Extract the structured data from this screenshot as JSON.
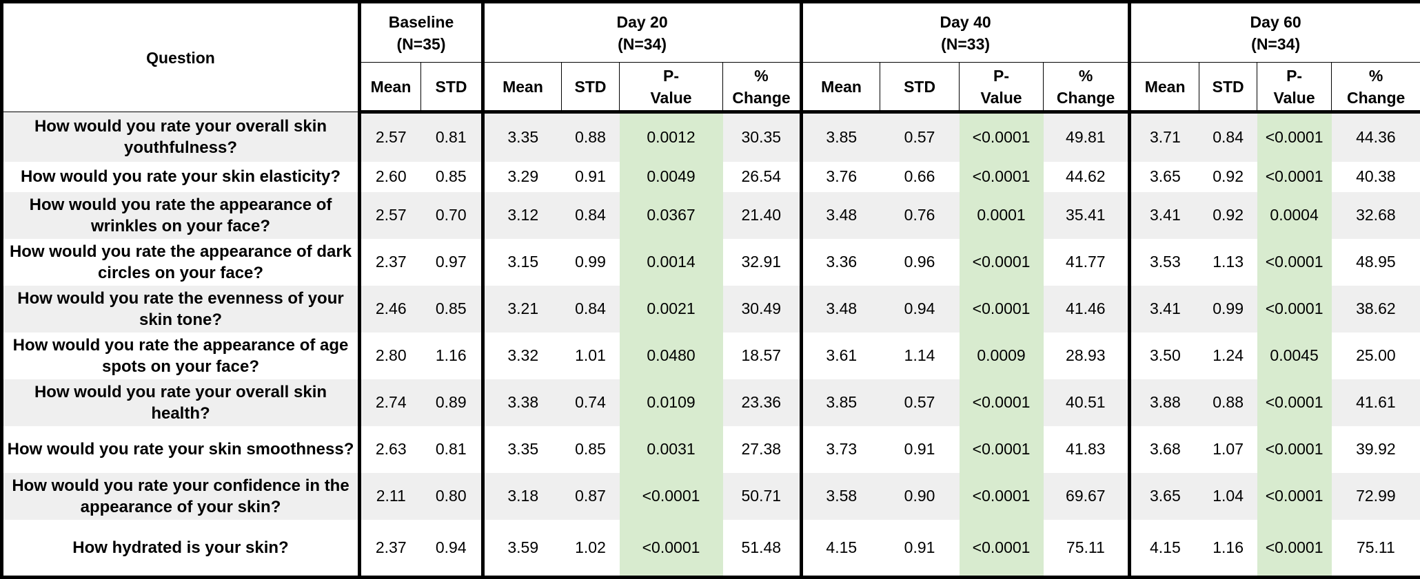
{
  "table": {
    "question_header": "Question",
    "groups": [
      {
        "label": "Baseline",
        "n": "(N=35)",
        "columns": [
          "Mean",
          "STD"
        ]
      },
      {
        "label": "Day 20",
        "n": "(N=34)",
        "columns": [
          "Mean",
          "STD",
          "P-Value",
          "% Change"
        ]
      },
      {
        "label": "Day 40",
        "n": "(N=33)",
        "columns": [
          "Mean",
          "STD",
          "P-Value",
          "% Change"
        ]
      },
      {
        "label": "Day 60",
        "n": "(N=34)",
        "columns": [
          "Mean",
          "STD",
          "P-Value",
          "% Change"
        ]
      }
    ],
    "rows": [
      {
        "question": "How would you rate your overall skin youthfulness?",
        "cells": [
          "2.57",
          "0.81",
          "3.35",
          "0.88",
          "0.0012",
          "30.35",
          "3.85",
          "0.57",
          "<0.0001",
          "49.81",
          "3.71",
          "0.84",
          "<0.0001",
          "44.36"
        ]
      },
      {
        "question": "How would you rate your skin elasticity?",
        "cells": [
          "2.60",
          "0.85",
          "3.29",
          "0.91",
          "0.0049",
          "26.54",
          "3.76",
          "0.66",
          "<0.0001",
          "44.62",
          "3.65",
          "0.92",
          "<0.0001",
          "40.38"
        ]
      },
      {
        "question": "How would you rate the appearance of wrinkles on your face?",
        "cells": [
          "2.57",
          "0.70",
          "3.12",
          "0.84",
          "0.0367",
          "21.40",
          "3.48",
          "0.76",
          "0.0001",
          "35.41",
          "3.41",
          "0.92",
          "0.0004",
          "32.68"
        ]
      },
      {
        "question": "How would you rate the appearance of dark circles on your face?",
        "cells": [
          "2.37",
          "0.97",
          "3.15",
          "0.99",
          "0.0014",
          "32.91",
          "3.36",
          "0.96",
          "<0.0001",
          "41.77",
          "3.53",
          "1.13",
          "<0.0001",
          "48.95"
        ]
      },
      {
        "question": "How would you rate the evenness of your skin tone?",
        "cells": [
          "2.46",
          "0.85",
          "3.21",
          "0.84",
          "0.0021",
          "30.49",
          "3.48",
          "0.94",
          "<0.0001",
          "41.46",
          "3.41",
          "0.99",
          "<0.0001",
          "38.62"
        ]
      },
      {
        "question": "How would you rate the appearance of age spots on your face?",
        "cells": [
          "2.80",
          "1.16",
          "3.32",
          "1.01",
          "0.0480",
          "18.57",
          "3.61",
          "1.14",
          "0.0009",
          "28.93",
          "3.50",
          "1.24",
          "0.0045",
          "25.00"
        ]
      },
      {
        "question": "How would you rate your overall skin health?",
        "cells": [
          "2.74",
          "0.89",
          "3.38",
          "0.74",
          "0.0109",
          "23.36",
          "3.85",
          "0.57",
          "<0.0001",
          "40.51",
          "3.88",
          "0.88",
          "<0.0001",
          "41.61"
        ]
      },
      {
        "question": "How would you rate your skin smoothness?",
        "cells": [
          "2.63",
          "0.81",
          "3.35",
          "0.85",
          "0.0031",
          "27.38",
          "3.73",
          "0.91",
          "<0.0001",
          "41.83",
          "3.68",
          "1.07",
          "<0.0001",
          "39.92"
        ]
      },
      {
        "question": "How would you rate your confidence in the appearance of your skin?",
        "cells": [
          "2.11",
          "0.80",
          "3.18",
          "0.87",
          "<0.0001",
          "50.71",
          "3.58",
          "0.90",
          "<0.0001",
          "69.67",
          "3.65",
          "1.04",
          "<0.0001",
          "72.99"
        ]
      },
      {
        "question": "How hydrated is your skin?",
        "cells": [
          "2.37",
          "0.94",
          "3.59",
          "1.02",
          "<0.0001",
          "51.48",
          "4.15",
          "0.91",
          "<0.0001",
          "75.11",
          "4.15",
          "1.16",
          "<0.0001",
          "75.11"
        ]
      }
    ]
  }
}
